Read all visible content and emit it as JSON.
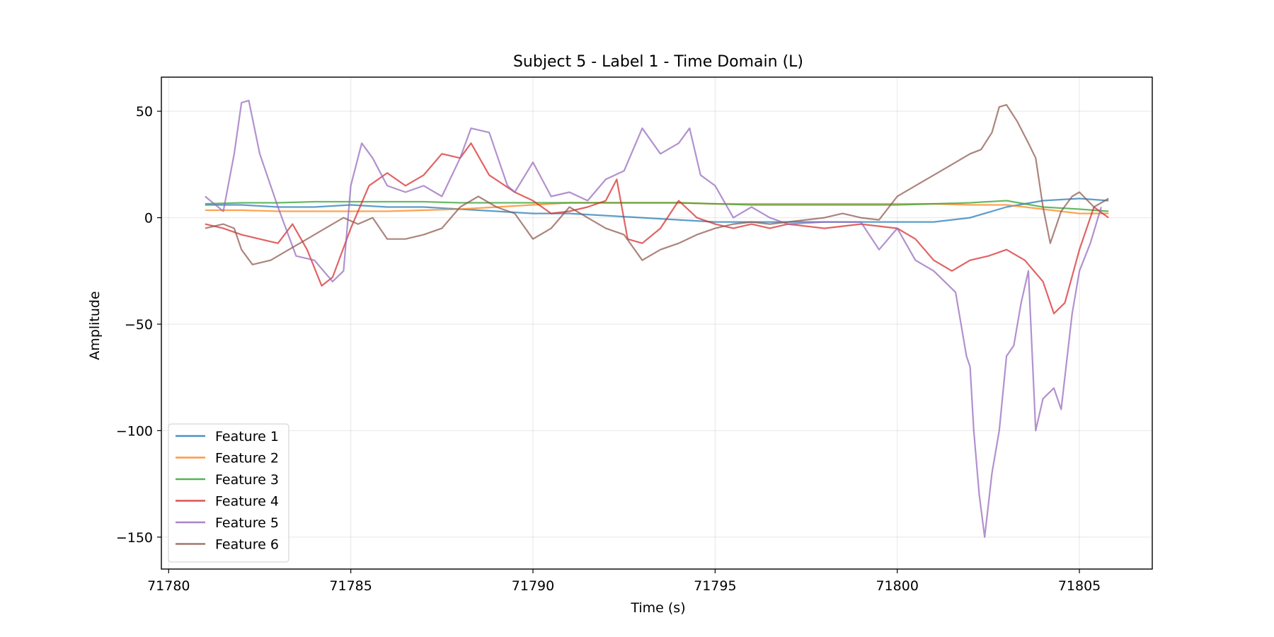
{
  "chart_data": {
    "type": "line",
    "title": "Subject 5 - Label 1 - Time Domain (L)",
    "xlabel": "Time (s)",
    "ylabel": "Amplitude",
    "xlim": [
      71779.8,
      71807.0
    ],
    "ylim": [
      -165,
      66
    ],
    "xticks": [
      71780,
      71785,
      71790,
      71795,
      71800,
      71805
    ],
    "yticks": [
      50,
      0,
      -50,
      -100,
      -150
    ],
    "xtick_labels": [
      "71780",
      "71785",
      "71790",
      "71795",
      "71800",
      "71805"
    ],
    "ytick_labels": [
      "50",
      "0",
      "−50",
      "−100",
      "−150"
    ],
    "grid": true,
    "legend_position": "lower-left",
    "series": [
      {
        "name": "Feature 1",
        "color": "#1f77b4",
        "x": [
          71781,
          71782,
          71783,
          71784,
          71785,
          71786,
          71787,
          71788,
          71789,
          71790,
          71791,
          71792,
          71793,
          71794,
          71795,
          71796,
          71797,
          71798,
          71799,
          71800,
          71801,
          71802,
          71803,
          71804,
          71805,
          71805.8
        ],
        "y": [
          6,
          6,
          5,
          5,
          6,
          5,
          5,
          4,
          3,
          2,
          2,
          1,
          0,
          -1,
          -2,
          -2,
          -2,
          -2,
          -2,
          -2,
          -2,
          0,
          5,
          8,
          9,
          8
        ]
      },
      {
        "name": "Feature 2",
        "color": "#ff7f0e",
        "x": [
          71781,
          71782,
          71783,
          71784,
          71785,
          71786,
          71787,
          71788,
          71789,
          71790,
          71791,
          71792,
          71793,
          71794,
          71795,
          71796,
          71797,
          71798,
          71799,
          71800,
          71801,
          71802,
          71803,
          71804,
          71805,
          71805.8
        ],
        "y": [
          3.5,
          3.5,
          3,
          3,
          3,
          3,
          3.5,
          4,
          5,
          6,
          7,
          7,
          7,
          7,
          6.5,
          6.5,
          6.5,
          6.5,
          6.5,
          6.5,
          6.5,
          6,
          6,
          4,
          2,
          2
        ]
      },
      {
        "name": "Feature 3",
        "color": "#2ca02c",
        "x": [
          71781,
          71782,
          71783,
          71784,
          71785,
          71786,
          71787,
          71788,
          71789,
          71790,
          71791,
          71792,
          71793,
          71794,
          71795,
          71796,
          71797,
          71798,
          71799,
          71800,
          71801,
          71802,
          71803,
          71804,
          71805,
          71805.8
        ],
        "y": [
          6.5,
          7,
          7,
          7.5,
          7.5,
          7.5,
          7.5,
          7,
          7,
          7,
          7,
          7,
          7,
          7,
          6.5,
          6,
          6,
          6,
          6,
          6,
          6.5,
          7,
          8,
          5,
          4,
          3
        ]
      },
      {
        "name": "Feature 4",
        "color": "#d62728",
        "x": [
          71781,
          71781.5,
          71782,
          71782.5,
          71783,
          71783.4,
          71783.8,
          71784.2,
          71784.5,
          71785,
          71785.5,
          71786,
          71786.5,
          71787,
          71787.5,
          71788,
          71788.3,
          71788.8,
          71789.5,
          71790,
          71790.5,
          71791,
          71791.5,
          71792,
          71792.3,
          71792.6,
          71793,
          71793.5,
          71794,
          71794.5,
          71795,
          71795.5,
          71796,
          71796.5,
          71797,
          71798,
          71799,
          71800,
          71800.5,
          71801,
          71801.5,
          71802,
          71802.5,
          71803,
          71803.5,
          71804,
          71804.3,
          71804.6,
          71805,
          71805.4,
          71805.8
        ],
        "y": [
          -3,
          -5,
          -8,
          -10,
          -12,
          -3,
          -15,
          -32,
          -28,
          -5,
          15,
          21,
          15,
          20,
          30,
          28,
          35,
          20,
          12,
          8,
          2,
          3,
          5,
          8,
          18,
          -10,
          -12,
          -5,
          8,
          0,
          -3,
          -5,
          -3,
          -5,
          -3,
          -5,
          -3,
          -5,
          -10,
          -20,
          -25,
          -20,
          -18,
          -15,
          -20,
          -30,
          -45,
          -40,
          -15,
          5,
          0
        ]
      },
      {
        "name": "Feature 5",
        "color": "#9467bd",
        "x": [
          71781,
          71781.5,
          71781.8,
          71782,
          71782.2,
          71782.5,
          71783,
          71783.5,
          71784,
          71784.5,
          71784.8,
          71785,
          71785.3,
          71785.6,
          71786,
          71786.5,
          71787,
          71787.5,
          71788,
          71788.3,
          71788.8,
          71789,
          71789.3,
          71789.5,
          71790,
          71790.5,
          71791,
          71791.5,
          71792,
          71792.5,
          71793,
          71793.5,
          71794,
          71794.3,
          71794.6,
          71795,
          71795.5,
          71796,
          71796.5,
          71797,
          71798,
          71799,
          71799.5,
          71800,
          71800.5,
          71801,
          71801.3,
          71801.6,
          71801.9,
          71802,
          71802.1,
          71802.25,
          71802.4,
          71802.6,
          71802.8,
          71803,
          71803.2,
          71803.4,
          71803.6,
          71803.8,
          71804,
          71804.3,
          71804.5,
          71804.8,
          71805,
          71805.3,
          71805.6
        ],
        "y": [
          10,
          3,
          30,
          54,
          55,
          30,
          5,
          -18,
          -20,
          -30,
          -25,
          15,
          35,
          28,
          15,
          12,
          15,
          10,
          28,
          42,
          40,
          30,
          15,
          12,
          26,
          10,
          12,
          8,
          18,
          22,
          42,
          30,
          35,
          42,
          20,
          15,
          0,
          5,
          0,
          -3,
          -2,
          -2,
          -15,
          -5,
          -20,
          -25,
          -30,
          -35,
          -65,
          -70,
          -100,
          -130,
          -150,
          -120,
          -100,
          -65,
          -60,
          -40,
          -25,
          -100,
          -85,
          -80,
          -90,
          -45,
          -25,
          -12,
          5
        ]
      },
      {
        "name": "Feature 6",
        "color": "#8c564b",
        "x": [
          71781,
          71781.5,
          71781.8,
          71782,
          71782.3,
          71782.8,
          71783.3,
          71783.8,
          71784.3,
          71784.8,
          71785.2,
          71785.6,
          71786,
          71786.5,
          71787,
          71787.5,
          71788,
          71788.5,
          71789,
          71789.5,
          71790,
          71790.5,
          71791,
          71791.5,
          71792,
          71792.5,
          71793,
          71793.5,
          71794,
          71794.5,
          71795,
          71795.5,
          71796,
          71796.5,
          71797,
          71798,
          71798.5,
          71799,
          71799.5,
          71800,
          71800.5,
          71801,
          71801.5,
          71802,
          71802.3,
          71802.6,
          71802.8,
          71803,
          71803.3,
          71803.6,
          71803.8,
          71804,
          71804.2,
          71804.5,
          71804.8,
          71805,
          71805.4,
          71805.8
        ],
        "y": [
          -5,
          -3,
          -5,
          -15,
          -22,
          -20,
          -15,
          -10,
          -5,
          0,
          -3,
          0,
          -10,
          -10,
          -8,
          -5,
          5,
          10,
          5,
          2,
          -10,
          -5,
          5,
          0,
          -5,
          -8,
          -20,
          -15,
          -12,
          -8,
          -5,
          -3,
          -2,
          -3,
          -2,
          0,
          2,
          0,
          -1,
          10,
          15,
          20,
          25,
          30,
          32,
          40,
          52,
          53,
          45,
          35,
          28,
          5,
          -12,
          3,
          10,
          12,
          5,
          9
        ]
      }
    ]
  }
}
